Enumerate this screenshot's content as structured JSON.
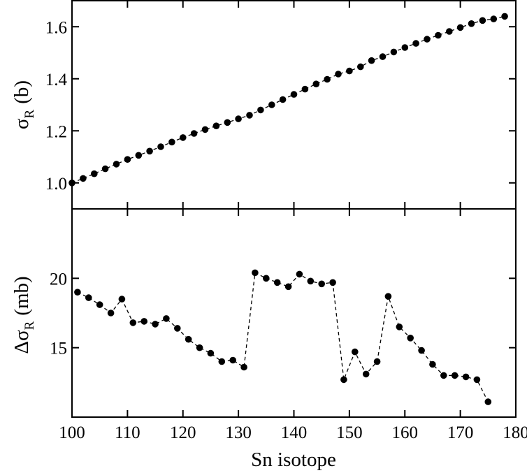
{
  "chart_data": [
    {
      "type": "scatter",
      "panel": "top",
      "xlabel": "Sn isotope",
      "ylabel": "σR (b)",
      "ylabel_main": "σ",
      "ylabel_sub": "R",
      "ylabel_unit": "(b)",
      "xlim": [
        100,
        180
      ],
      "ylim": [
        0.9,
        1.7
      ],
      "xticks": [
        100,
        110,
        120,
        130,
        140,
        150,
        160,
        170,
        180
      ],
      "yticks": [
        1.0,
        1.2,
        1.4,
        1.6
      ],
      "ytick_labels": [
        "1.0",
        "1.2",
        "1.4",
        "1.6"
      ],
      "line_style": "dashed",
      "marker": "filled-circle",
      "x": [
        100,
        102,
        104,
        106,
        108,
        110,
        112,
        114,
        116,
        118,
        120,
        122,
        124,
        126,
        128,
        130,
        132,
        134,
        136,
        138,
        140,
        142,
        144,
        146,
        148,
        150,
        152,
        154,
        156,
        158,
        160,
        162,
        164,
        166,
        168,
        170,
        172,
        174,
        176,
        178
      ],
      "y": [
        1.0,
        1.017,
        1.035,
        1.054,
        1.072,
        1.09,
        1.106,
        1.122,
        1.139,
        1.157,
        1.174,
        1.19,
        1.205,
        1.219,
        1.232,
        1.246,
        1.26,
        1.28,
        1.3,
        1.32,
        1.34,
        1.36,
        1.38,
        1.398,
        1.418,
        1.43,
        1.446,
        1.47,
        1.485,
        1.503,
        1.52,
        1.536,
        1.552,
        1.567,
        1.582,
        1.597,
        1.612,
        1.624,
        1.63,
        1.64
      ]
    },
    {
      "type": "scatter",
      "panel": "bottom",
      "xlabel": "Sn isotope",
      "ylabel": "ΔσR (mb)",
      "ylabel_main": "Δσ",
      "ylabel_sub": "R",
      "ylabel_unit": "(mb)",
      "xlim": [
        100,
        180
      ],
      "ylim": [
        10,
        25
      ],
      "xticks": [
        100,
        110,
        120,
        130,
        140,
        150,
        160,
        170,
        180
      ],
      "xtick_labels": [
        "100",
        "110",
        "120",
        "130",
        "140",
        "150",
        "160",
        "170",
        "180"
      ],
      "yticks": [
        15,
        20
      ],
      "ytick_labels": [
        "15",
        "20"
      ],
      "line_style": "dashed",
      "marker": "filled-circle",
      "x": [
        101,
        103,
        105,
        107,
        109,
        111,
        113,
        115,
        117,
        119,
        121,
        123,
        125,
        127,
        129,
        131,
        133,
        135,
        137,
        139,
        141,
        143,
        145,
        147,
        149,
        151,
        153,
        155,
        157,
        159,
        161,
        163,
        165,
        167,
        169,
        171,
        173,
        175
      ],
      "y": [
        19.0,
        18.6,
        18.1,
        17.5,
        18.5,
        16.8,
        16.9,
        16.7,
        17.1,
        16.4,
        15.6,
        15.0,
        14.6,
        14.0,
        14.1,
        13.6,
        20.4,
        20.0,
        19.7,
        19.4,
        20.3,
        19.8,
        19.6,
        19.7,
        12.7,
        14.7,
        13.1,
        14.0,
        18.7,
        16.5,
        15.7,
        14.8,
        13.8,
        13.0,
        13.0,
        12.9,
        12.7,
        11.1
      ]
    }
  ]
}
